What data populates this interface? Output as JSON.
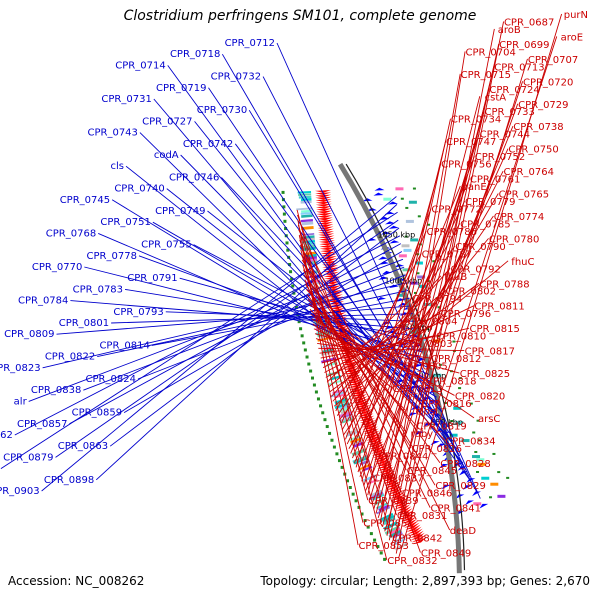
{
  "title": "Clostridium perfringens SM101, complete genome",
  "footer": {
    "accession": "Accession: NC_008262",
    "summary": "Topology: circular; Length: 2,897,393 bp; Genes: 2,670"
  },
  "colors": {
    "plus_label": "#cc0000",
    "minus_label": "#0000cc",
    "backbone": "#777777",
    "plus_arrow": "#ff0000",
    "minus_arrow": "#0000ff"
  },
  "ticks": [
    "850 kbp",
    "900 kbp",
    "950 kbp",
    "1000 kbp",
    "1050 kbp"
  ],
  "minus_labels": [
    "CPR_0712",
    "CPR_0718",
    "CPR_0714",
    "CPR_0732",
    "CPR_0719",
    "CPR_0731",
    "CPR_0730",
    "CPR_0727",
    "CPR_0743",
    "CPR_0742",
    "codA",
    "cls",
    "CPR_0746",
    "CPR_0740",
    "CPR_0745",
    "CPR_0749",
    "CPR_0751",
    "CPR_0768",
    "CPR_0755",
    "CPR_0778",
    "CPR_0770",
    "CPR_0791",
    "CPR_0783",
    "CPR_0784",
    "CPR_0793",
    "CPR_0801",
    "CPR_0809",
    "CPR_0814",
    "CPR_0822",
    "CPR_0823",
    "CPR_0824",
    "CPR_0838",
    "alr",
    "CPR_0859",
    "CPR_0857",
    "CPR_0862",
    "CPR_0863",
    "CPR_0879",
    "CPR_0886",
    "CPR_0898",
    "CPR_0903"
  ],
  "plus_labels": [
    "purN",
    "CPR_0687",
    "aroB",
    "aroE",
    "CPR_0699",
    "CPR_0704",
    "CPR_0707",
    "CPR_0713",
    "CPR_0715",
    "CPR_0720",
    "CPR_0724",
    "cstA",
    "CPR_0729",
    "CPR_0733",
    "CPR_0734",
    "CPR_0738",
    "CPR_0744",
    "CPR_0747",
    "CPR_0750",
    "CPR_0752",
    "CPR_0756",
    "CPR_0764",
    "CPR_0761",
    "panE",
    "CPR_0765",
    "CPR_0779",
    "CPR_0772",
    "CPR_0774",
    "CPR_0785",
    "CPR_0786",
    "CPR_0780",
    "CPR_0790",
    "CPR_0787",
    "fhuC",
    "CPR_0792",
    "fhuB",
    "CPR_0788",
    "CPR_0802",
    "CPR_0794",
    "CPR_0811",
    "CPR_0796",
    "CPR_0804",
    "CPR_0815",
    "CPR_0810",
    "CPR_0803",
    "CPR_0817",
    "CPR_0812",
    "CPR_0805",
    "CPR_0825",
    "CPR_0818",
    "CPR_0813",
    "CPR_0820",
    "CPR_0816",
    "closI",
    "arsC",
    "CPR_0819",
    "ruby",
    "CPR_0834",
    "CPR_0826",
    "CPR_0844",
    "CPR_0828",
    "CPR_0845",
    "CPR_0837",
    "CPR_0829",
    "CPR_0846",
    "CPR_0839",
    "CPR_0841",
    "CPR_0831",
    "CPR_0851",
    "deaD",
    "CPR_0842",
    "CPR_0853",
    "CPR_0849",
    "CPR_0832"
  ]
}
